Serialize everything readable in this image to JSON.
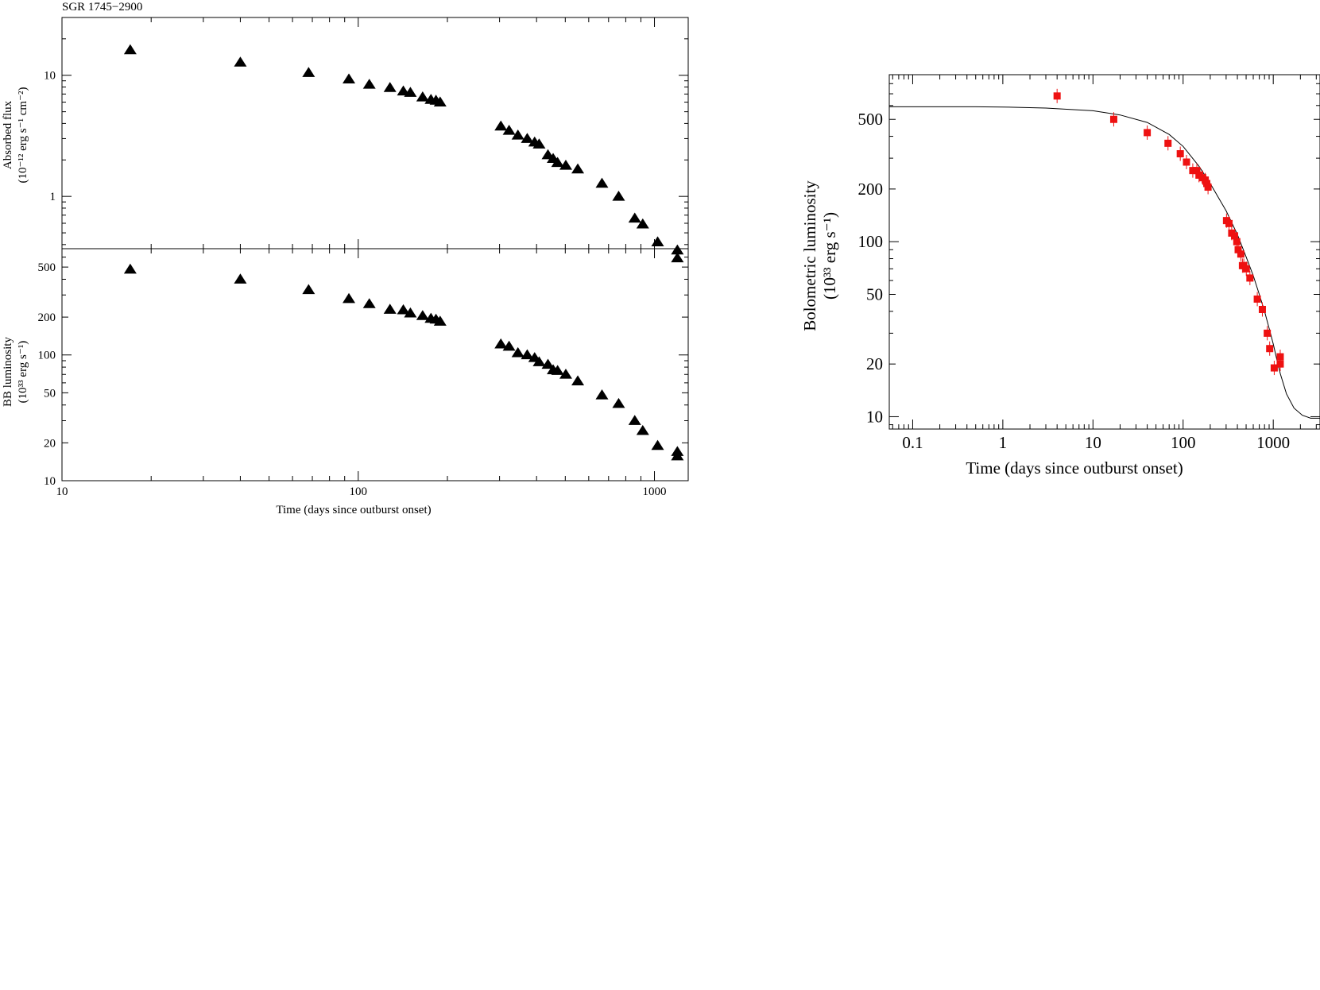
{
  "source_title": "SGR 1745−2900",
  "colors": {
    "left_marker": "#000000",
    "right_marker": "#ee1111",
    "axis": "#000000",
    "model_curve": "#000000"
  },
  "chart_data": [
    {
      "id": "flux",
      "type": "scatter",
      "marker": "triangle",
      "xscale": "log",
      "yscale": "log",
      "xlim": [
        10,
        1300
      ],
      "ylim": [
        0.37,
        30
      ],
      "xlabel": "",
      "ylabel": "Absorbed flux",
      "ylabel_units": "(10⁻¹² erg s⁻¹ cm⁻²)",
      "yticks": [
        1,
        10
      ],
      "ytick_labels": [
        "1",
        "10"
      ],
      "grid": false,
      "points": [
        [
          17,
          16.2
        ],
        [
          40,
          12.8
        ],
        [
          68,
          10.5
        ],
        [
          93,
          9.3
        ],
        [
          109,
          8.4
        ],
        [
          128,
          7.9
        ],
        [
          142,
          7.4
        ],
        [
          150,
          7.2
        ],
        [
          165,
          6.6
        ],
        [
          176,
          6.3
        ],
        [
          183,
          6.2
        ],
        [
          189,
          6.0
        ],
        [
          303,
          3.8
        ],
        [
          323,
          3.5
        ],
        [
          346,
          3.2
        ],
        [
          372,
          3.0
        ],
        [
          394,
          2.8
        ],
        [
          408,
          2.7
        ],
        [
          437,
          2.2
        ],
        [
          455,
          2.05
        ],
        [
          471,
          1.9
        ],
        [
          502,
          1.8
        ],
        [
          551,
          1.68
        ],
        [
          665,
          1.28
        ],
        [
          757,
          1.0
        ],
        [
          858,
          0.66
        ],
        [
          913,
          0.59
        ],
        [
          1025,
          0.42
        ],
        [
          1195,
          0.36
        ],
        [
          1195,
          0.31
        ]
      ]
    },
    {
      "id": "bb",
      "type": "scatter",
      "marker": "triangle",
      "xscale": "log",
      "yscale": "log",
      "xlim": [
        10,
        1300
      ],
      "ylim": [
        10,
        700
      ],
      "xlabel": "Time (days since outburst onset)",
      "ylabel": "BB luminosity",
      "ylabel_units": "(10³³ erg s⁻¹)",
      "xticks": [
        10,
        100,
        1000
      ],
      "xtick_labels": [
        "10",
        "100",
        "1000"
      ],
      "yticks": [
        10,
        20,
        50,
        100,
        200,
        500
      ],
      "ytick_labels": [
        "10",
        "20",
        "50",
        "100",
        "200",
        "500"
      ],
      "grid": false,
      "points": [
        [
          17,
          480
        ],
        [
          40,
          400
        ],
        [
          68,
          330
        ],
        [
          93,
          280
        ],
        [
          109,
          255
        ],
        [
          128,
          230
        ],
        [
          142,
          228
        ],
        [
          150,
          215
        ],
        [
          165,
          205
        ],
        [
          176,
          195
        ],
        [
          183,
          192
        ],
        [
          189,
          185
        ],
        [
          303,
          122
        ],
        [
          323,
          117
        ],
        [
          346,
          104
        ],
        [
          372,
          100
        ],
        [
          394,
          95
        ],
        [
          408,
          88
        ],
        [
          437,
          84
        ],
        [
          455,
          76
        ],
        [
          471,
          75
        ],
        [
          502,
          70
        ],
        [
          551,
          62
        ],
        [
          665,
          48
        ],
        [
          757,
          41
        ],
        [
          858,
          30
        ],
        [
          913,
          25
        ],
        [
          1025,
          19
        ],
        [
          1195,
          17
        ],
        [
          1195,
          15.7
        ]
      ]
    },
    {
      "id": "bolometric",
      "type": "scatter",
      "marker": "square",
      "xscale": "log",
      "yscale": "log",
      "xlim": [
        0.055,
        3300
      ],
      "ylim": [
        8.5,
        900
      ],
      "xlabel": "Time (days since outburst onset)",
      "ylabel": "Bolometric luminosity",
      "ylabel_units": "(10³³ erg s⁻¹)",
      "xticks": [
        0.1,
        1,
        10,
        100,
        1000
      ],
      "xtick_labels": [
        "0.1",
        "1",
        "10",
        "100",
        "1000"
      ],
      "yticks": [
        10,
        20,
        50,
        100,
        200,
        500
      ],
      "ytick_labels": [
        "10",
        "20",
        "50",
        "100",
        "200",
        "500"
      ],
      "grid": false,
      "model_curve": [
        [
          0.055,
          590
        ],
        [
          0.5,
          590
        ],
        [
          1,
          588
        ],
        [
          3,
          580
        ],
        [
          10,
          560
        ],
        [
          20,
          530
        ],
        [
          40,
          480
        ],
        [
          70,
          410
        ],
        [
          100,
          350
        ],
        [
          150,
          270
        ],
        [
          200,
          215
        ],
        [
          300,
          150
        ],
        [
          400,
          110
        ],
        [
          500,
          82
        ],
        [
          600,
          64
        ],
        [
          700,
          50
        ],
        [
          800,
          40
        ],
        [
          900,
          32
        ],
        [
          1000,
          26
        ],
        [
          1100,
          21
        ],
        [
          1200,
          17.5
        ],
        [
          1400,
          13.5
        ],
        [
          1700,
          11.2
        ],
        [
          2100,
          10.2
        ],
        [
          2600,
          9.8
        ],
        [
          3300,
          9.8
        ]
      ],
      "points": [
        [
          4,
          680
        ],
        [
          17,
          500
        ],
        [
          40,
          420
        ],
        [
          68,
          365
        ],
        [
          93,
          318
        ],
        [
          109,
          285
        ],
        [
          128,
          255
        ],
        [
          142,
          255
        ],
        [
          150,
          240
        ],
        [
          165,
          232
        ],
        [
          176,
          225
        ],
        [
          183,
          215
        ],
        [
          189,
          205
        ],
        [
          303,
          132
        ],
        [
          323,
          127
        ],
        [
          346,
          112
        ],
        [
          372,
          108
        ],
        [
          394,
          100
        ],
        [
          408,
          90
        ],
        [
          437,
          85
        ],
        [
          455,
          73
        ],
        [
          471,
          73
        ],
        [
          502,
          70
        ],
        [
          551,
          62
        ],
        [
          665,
          47
        ],
        [
          757,
          41
        ],
        [
          858,
          30
        ],
        [
          913,
          24.5
        ],
        [
          1025,
          19
        ],
        [
          1195,
          22
        ],
        [
          1195,
          20
        ]
      ]
    }
  ]
}
